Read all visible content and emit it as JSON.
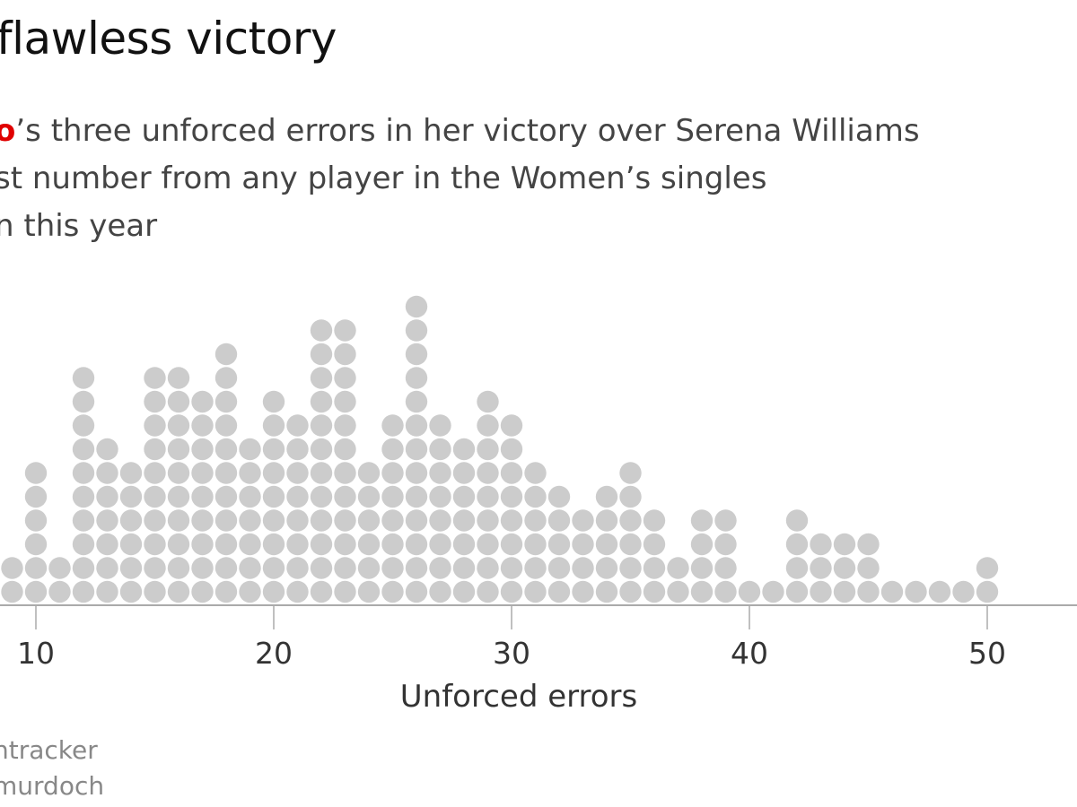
{
  "header": {
    "title": "flawless victory",
    "subtitle_highlight": "o",
    "subtitle_lines": [
      "’s three unforced errors in her victory over Serena Williams",
      "st number from any player in the Women’s singles",
      "n this year"
    ]
  },
  "footer": {
    "source_lines": [
      "ntracker",
      "murdoch"
    ]
  },
  "colors": {
    "dot": "#cccccc",
    "highlight": "#e00000",
    "axis": "#aaaaaa"
  },
  "chart_data": {
    "type": "dot-histogram",
    "xlabel": "Unforced errors",
    "ylabel": "",
    "x_ticks": [
      10,
      20,
      30,
      40,
      50
    ],
    "tick_labels": [
      "10",
      "20",
      "30",
      "40",
      "50"
    ],
    "grid": false,
    "x": [
      9,
      10,
      11,
      12,
      13,
      14,
      15,
      16,
      17,
      18,
      19,
      20,
      21,
      22,
      23,
      24,
      25,
      26,
      27,
      28,
      29,
      30,
      31,
      32,
      33,
      34,
      35,
      36,
      37,
      38,
      39,
      40,
      41,
      42,
      43,
      44,
      45,
      46,
      47,
      48,
      49,
      50
    ],
    "counts": [
      2,
      6,
      2,
      10,
      7,
      6,
      10,
      10,
      9,
      11,
      7,
      9,
      8,
      12,
      12,
      6,
      8,
      13,
      8,
      7,
      9,
      8,
      6,
      5,
      4,
      5,
      6,
      4,
      2,
      4,
      4,
      1,
      1,
      4,
      3,
      3,
      3,
      1,
      1,
      1,
      1,
      2
    ]
  }
}
